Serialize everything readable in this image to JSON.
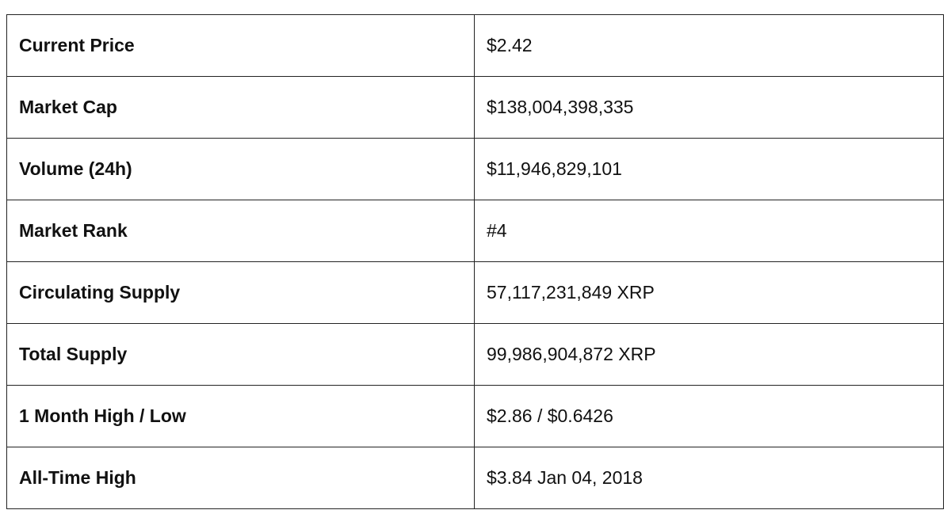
{
  "table": {
    "rows": [
      [
        "Current Price",
        "$2.42"
      ],
      [
        "Market Cap",
        "$138,004,398,335"
      ],
      [
        "Volume (24h)",
        "$11,946,829,101"
      ],
      [
        "Market Rank",
        "#4"
      ],
      [
        "Circulating Supply",
        "57,117,231,849 XRP"
      ],
      [
        "Total Supply",
        "99,986,904,872 XRP"
      ],
      [
        "1 Month High / Low",
        "$2.86 / $0.6426"
      ],
      [
        "All-Time High",
        "$3.84 Jan 04, 2018"
      ]
    ]
  }
}
